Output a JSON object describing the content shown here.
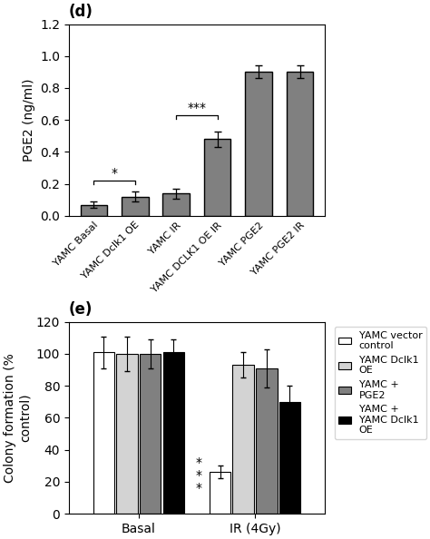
{
  "chart_data": [
    {
      "type": "bar",
      "title": "(d)",
      "categories": [
        "YAMC Basal",
        "YAMC Dclk1 OE",
        "YAMC IR",
        "YAMC DCLK1 OE IR",
        "YAMC PGE2",
        "YAMC PGE2 IR"
      ],
      "values": [
        0.07,
        0.12,
        0.14,
        0.48,
        0.9,
        0.9
      ],
      "errors": [
        0.02,
        0.03,
        0.03,
        0.05,
        0.04,
        0.04
      ],
      "color": "#808080",
      "ylabel": "PGE2 (ng/ml)",
      "ylim": [
        0,
        1.2
      ],
      "yticks": [
        0.0,
        0.2,
        0.4,
        0.6,
        0.8,
        1.0,
        1.2
      ],
      "annotations": [
        {
          "text": "*",
          "between": [
            "YAMC Basal",
            "YAMC Dclk1 OE"
          ],
          "y": 0.22
        },
        {
          "text": "***",
          "between": [
            "YAMC IR",
            "YAMC DCLK1 OE IR"
          ],
          "y": 0.63
        }
      ]
    },
    {
      "type": "bar",
      "title": "(e)",
      "categories": [
        "Basal",
        "IR (4Gy)"
      ],
      "series": [
        {
          "name": "YAMC vector\ncontrol",
          "color": "#ffffff",
          "values": [
            101,
            26
          ],
          "errors": [
            10,
            4
          ]
        },
        {
          "name": "YAMC Dclk1\nOE",
          "color": "#d3d3d3",
          "values": [
            100,
            93
          ],
          "errors": [
            11,
            8
          ]
        },
        {
          "name": "YAMC +\nPGE2",
          "color": "#808080",
          "values": [
            100,
            91
          ],
          "errors": [
            9,
            12
          ]
        },
        {
          "name": "YAMC +\nYAMC Dclk1\nOE",
          "color": "#000000",
          "values": [
            101,
            70
          ],
          "errors": [
            8,
            10
          ]
        }
      ],
      "ylabel": "Colony formation (%\ncontrol)",
      "ylim": [
        0,
        120
      ],
      "yticks": [
        0,
        20,
        40,
        60,
        80,
        100,
        120
      ],
      "legend": "upper left",
      "annotations": [
        {
          "text": "*",
          "category": "IR (4Gy)",
          "y": 32
        },
        {
          "text": "*",
          "category": "IR (4Gy)",
          "y": 24
        },
        {
          "text": "*",
          "category": "IR (4Gy)",
          "y": 16
        }
      ]
    }
  ]
}
